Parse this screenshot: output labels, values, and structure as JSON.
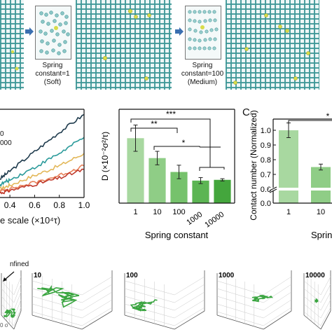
{
  "panel_a": {
    "captions": [
      {
        "line1": "Spring",
        "line2": "constant=1",
        "line3": "(Soft)"
      },
      {
        "line1": "Spring",
        "line2": "constant=100",
        "line3": "(Medium)"
      }
    ],
    "arrow_color": "#3a6fb0",
    "mesh_color": "#3c9696",
    "particle_color": "#d8dc4a"
  },
  "panel_b": {
    "legend": [
      "0",
      "000"
    ],
    "x_label": "e scale (×10⁴τ)"
  },
  "panel_c_letter": "C",
  "chart_data": [
    {
      "type": "line",
      "x": [
        0.4,
        0.6,
        0.8,
        1.0
      ],
      "x_ticks": [
        "0.4",
        "0.6",
        "0.8",
        "1.0"
      ],
      "xlabel": "e scale (×10⁴τ)",
      "xlim": [
        0.32,
        1.0
      ],
      "legend": [
        "0",
        "000"
      ],
      "series": [
        {
          "color": "#1f3b4d",
          "values": [
            0.3,
            0.52,
            0.74,
            0.94
          ]
        },
        {
          "color": "#2a9a9a",
          "values": [
            0.2,
            0.34,
            0.5,
            0.68
          ]
        },
        {
          "color": "#e3b85a",
          "values": [
            0.14,
            0.25,
            0.36,
            0.5
          ]
        },
        {
          "color": "#e8825a",
          "values": [
            0.1,
            0.17,
            0.25,
            0.36
          ]
        },
        {
          "color": "#c0392b",
          "values": [
            0.08,
            0.15,
            0.22,
            0.32
          ]
        }
      ]
    },
    {
      "type": "bar",
      "categories": [
        "1",
        "10",
        "100",
        "1000",
        "10000"
      ],
      "values": [
        1.73,
        1.2,
        0.83,
        0.6,
        0.62
      ],
      "errors": [
        0.35,
        0.18,
        0.18,
        0.08,
        0.03
      ],
      "colors": [
        "#a8d8a0",
        "#8fcd86",
        "#76c26c",
        "#5cb553",
        "#44a63d"
      ],
      "ylabel": "D (×10⁻²σ²/τ)",
      "xlabel": "Spring constant",
      "ylim": [
        0,
        2.5
      ],
      "y_ticks": [
        "0.0",
        "0.5",
        "1.0",
        "1.5",
        "2.0",
        "2.5"
      ],
      "significance": [
        "***",
        "**",
        "*"
      ]
    },
    {
      "type": "bar",
      "categories": [
        "1",
        "10"
      ],
      "values": [
        1.0,
        0.75
      ],
      "errors": [
        0.05,
        0.02
      ],
      "colors": [
        "#a8d8a0",
        "#8fcd86"
      ],
      "ylabel": "Contact number (Normalized)",
      "xlabel": "Sprin",
      "y_ticks": [
        "1.0",
        "0.9",
        "0.8",
        "0.7",
        "0.6",
        "0.0"
      ],
      "significance": [
        "*"
      ]
    }
  ],
  "panel_d": {
    "labels": [
      "10",
      "100",
      "1000",
      "10000"
    ],
    "annotation": "nfined",
    "axis_fragment": "0 σ",
    "trajectory_color": "#3aa540"
  }
}
